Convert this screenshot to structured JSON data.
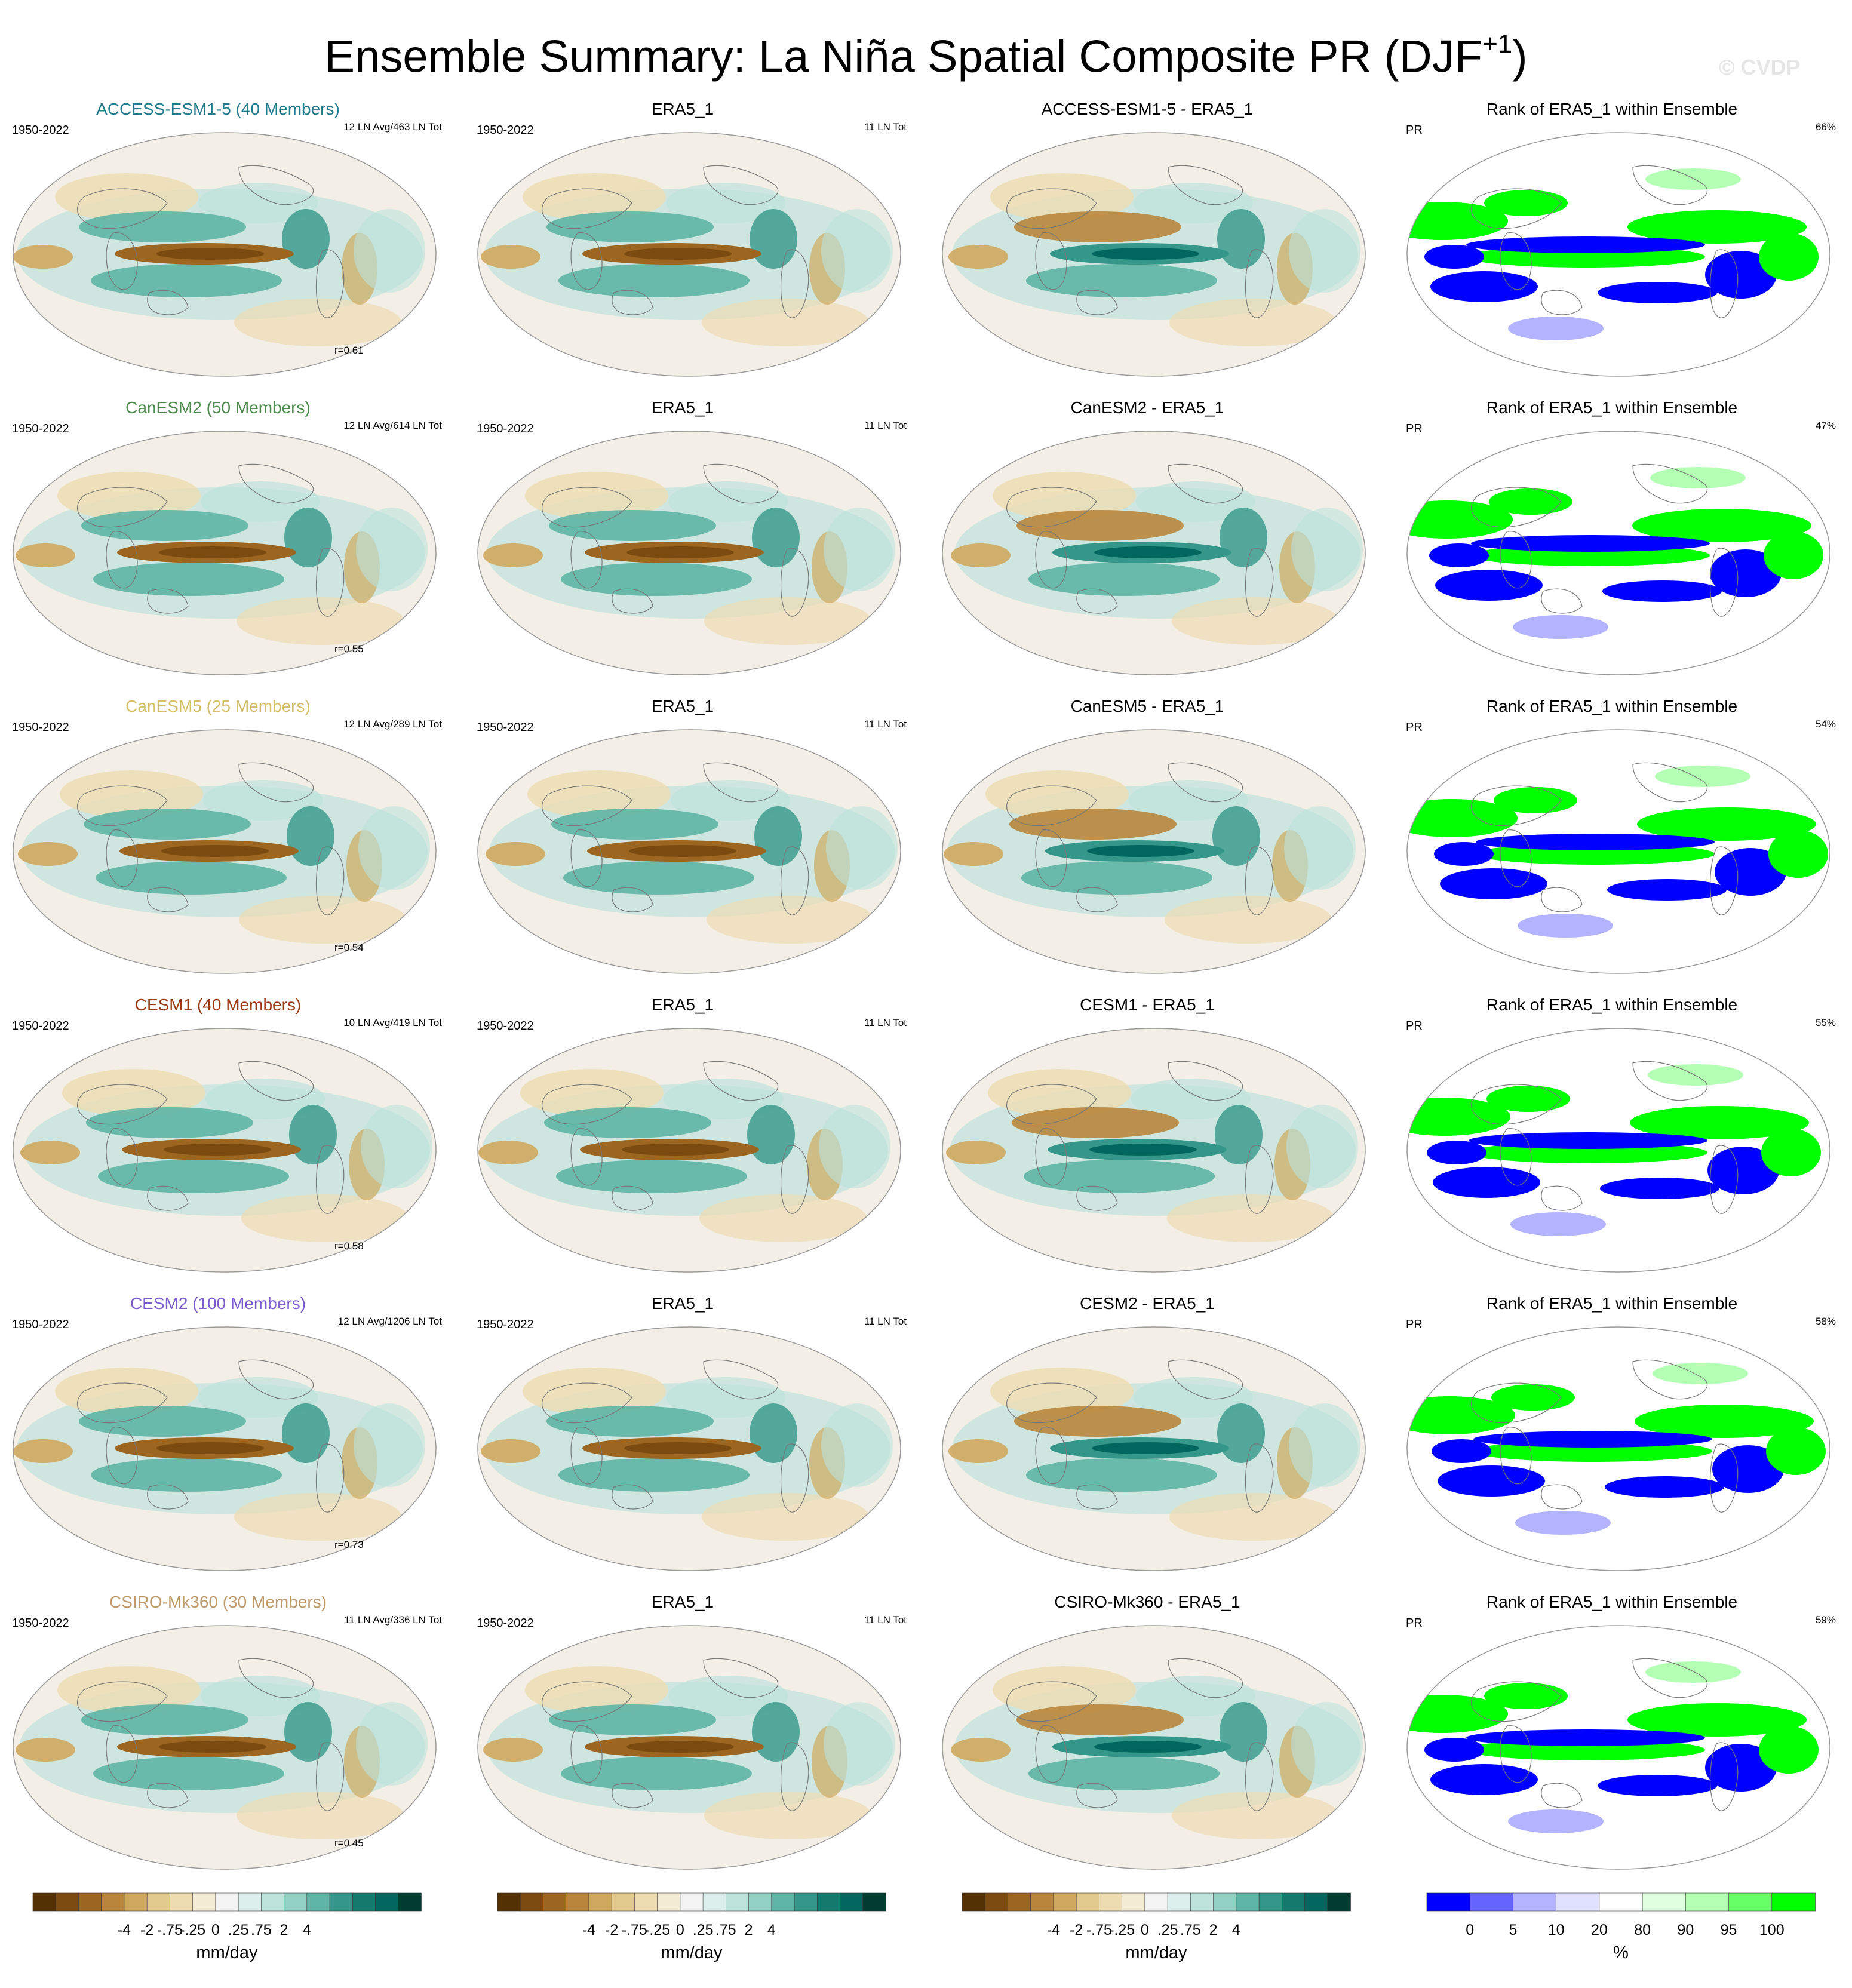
{
  "title_main": "Ensemble Summary: La Niña Spatial Composite PR (DJF",
  "title_sup": "+1",
  "title_end": ")",
  "watermark": "© CVDP",
  "ensemble_color": "#1f6a8a",
  "rows": [
    {
      "model": {
        "title": "ACCESS-ESM1-5 (40 Members)",
        "color": "#1f7a8c",
        "years": "1950-2022",
        "tot": "12 LN Avg/463 LN Tot",
        "corr": "r=0.61"
      },
      "obs": {
        "title": "ERA5_1",
        "years": "1950-2022",
        "tot": "11 LN Tot"
      },
      "diff": {
        "title": "ACCESS-ESM1-5 - ERA5_1"
      },
      "rank": {
        "title": "Rank of ERA5_1 within Ensemble",
        "var": "PR",
        "pct": "66%"
      }
    },
    {
      "model": {
        "title": "CanESM2 (50 Members)",
        "color": "#4f8a4f",
        "years": "1950-2022",
        "tot": "12 LN Avg/614 LN Tot",
        "corr": "r=0.55"
      },
      "obs": {
        "title": "ERA5_1",
        "years": "1950-2022",
        "tot": "11 LN Tot"
      },
      "diff": {
        "title": "CanESM2 - ERA5_1"
      },
      "rank": {
        "title": "Rank of ERA5_1 within Ensemble",
        "var": "PR",
        "pct": "47%"
      }
    },
    {
      "model": {
        "title": "CanESM5 (25 Members)",
        "color": "#d4bf6a",
        "years": "1950-2022",
        "tot": "12 LN Avg/289 LN Tot",
        "corr": "r=0.54"
      },
      "obs": {
        "title": "ERA5_1",
        "years": "1950-2022",
        "tot": "11 LN Tot"
      },
      "diff": {
        "title": "CanESM5 - ERA5_1"
      },
      "rank": {
        "title": "Rank of ERA5_1 within Ensemble",
        "var": "PR",
        "pct": "54%"
      }
    },
    {
      "model": {
        "title": "CESM1 (40 Members)",
        "color": "#9a3a12",
        "years": "1950-2022",
        "tot": "10 LN Avg/419 LN Tot",
        "corr": "r=0.58"
      },
      "obs": {
        "title": "ERA5_1",
        "years": "1950-2022",
        "tot": "11 LN Tot"
      },
      "diff": {
        "title": "CESM1 - ERA5_1"
      },
      "rank": {
        "title": "Rank of ERA5_1 within Ensemble",
        "var": "PR",
        "pct": "55%"
      }
    },
    {
      "model": {
        "title": "CESM2 (100 Members)",
        "color": "#7a5ccc",
        "years": "1950-2022",
        "tot": "12 LN Avg/1206 LN Tot",
        "corr": "r=0.73"
      },
      "obs": {
        "title": "ERA5_1",
        "years": "1950-2022",
        "tot": "11 LN Tot"
      },
      "diff": {
        "title": "CESM2 - ERA5_1"
      },
      "rank": {
        "title": "Rank of ERA5_1 within Ensemble",
        "var": "PR",
        "pct": "58%"
      }
    },
    {
      "model": {
        "title": "CSIRO-Mk360 (30 Members)",
        "color": "#c09a6a",
        "years": "1950-2022",
        "tot": "11 LN Avg/336 LN Tot",
        "corr": "r=0.45"
      },
      "obs": {
        "title": "ERA5_1",
        "years": "1950-2022",
        "tot": "11 LN Tot"
      },
      "diff": {
        "title": "CSIRO-Mk360 - ERA5_1"
      },
      "rank": {
        "title": "Rank of ERA5_1 within Ensemble",
        "var": "PR",
        "pct": "59%"
      }
    }
  ],
  "colorbars": [
    {
      "kind": "brbg",
      "ticks": [
        "-4",
        "-2",
        "-.75",
        "-.25",
        "0",
        ".25",
        ".75",
        "2",
        "4"
      ],
      "label": "mm/day",
      "colors": [
        "#543005",
        "#7a4a10",
        "#9c6520",
        "#b8863c",
        "#cfa95e",
        "#e2c98c",
        "#eddcb2",
        "#f5ecd6",
        "#f3f3f3",
        "#dcefec",
        "#bde3dc",
        "#92d0c4",
        "#5fb5a6",
        "#35978a",
        "#157a6e",
        "#01665e",
        "#003c30"
      ]
    },
    {
      "kind": "brbg",
      "ticks": [
        "-4",
        "-2",
        "-.75",
        "-.25",
        "0",
        ".25",
        ".75",
        "2",
        "4"
      ],
      "label": "mm/day",
      "colors": [
        "#543005",
        "#7a4a10",
        "#9c6520",
        "#b8863c",
        "#cfa95e",
        "#e2c98c",
        "#eddcb2",
        "#f5ecd6",
        "#f3f3f3",
        "#dcefec",
        "#bde3dc",
        "#92d0c4",
        "#5fb5a6",
        "#35978a",
        "#157a6e",
        "#01665e",
        "#003c30"
      ]
    },
    {
      "kind": "brbg",
      "ticks": [
        "-4",
        "-2",
        "-.75",
        "-.25",
        "0",
        ".25",
        ".75",
        "2",
        "4"
      ],
      "label": "mm/day",
      "colors": [
        "#543005",
        "#7a4a10",
        "#9c6520",
        "#b8863c",
        "#cfa95e",
        "#e2c98c",
        "#eddcb2",
        "#f5ecd6",
        "#f3f3f3",
        "#dcefec",
        "#bde3dc",
        "#92d0c4",
        "#5fb5a6",
        "#35978a",
        "#157a6e",
        "#01665e",
        "#003c30"
      ]
    },
    {
      "kind": "rank",
      "ticks": [
        "0",
        "5",
        "10",
        "20",
        "80",
        "90",
        "95",
        "100"
      ],
      "label": "%",
      "colors": [
        "#0000ff",
        "#6666ff",
        "#b3b3ff",
        "#e0e0ff",
        "#ffffff",
        "#e0ffe0",
        "#b3ffb3",
        "#66ff66",
        "#00ff00"
      ]
    }
  ]
}
